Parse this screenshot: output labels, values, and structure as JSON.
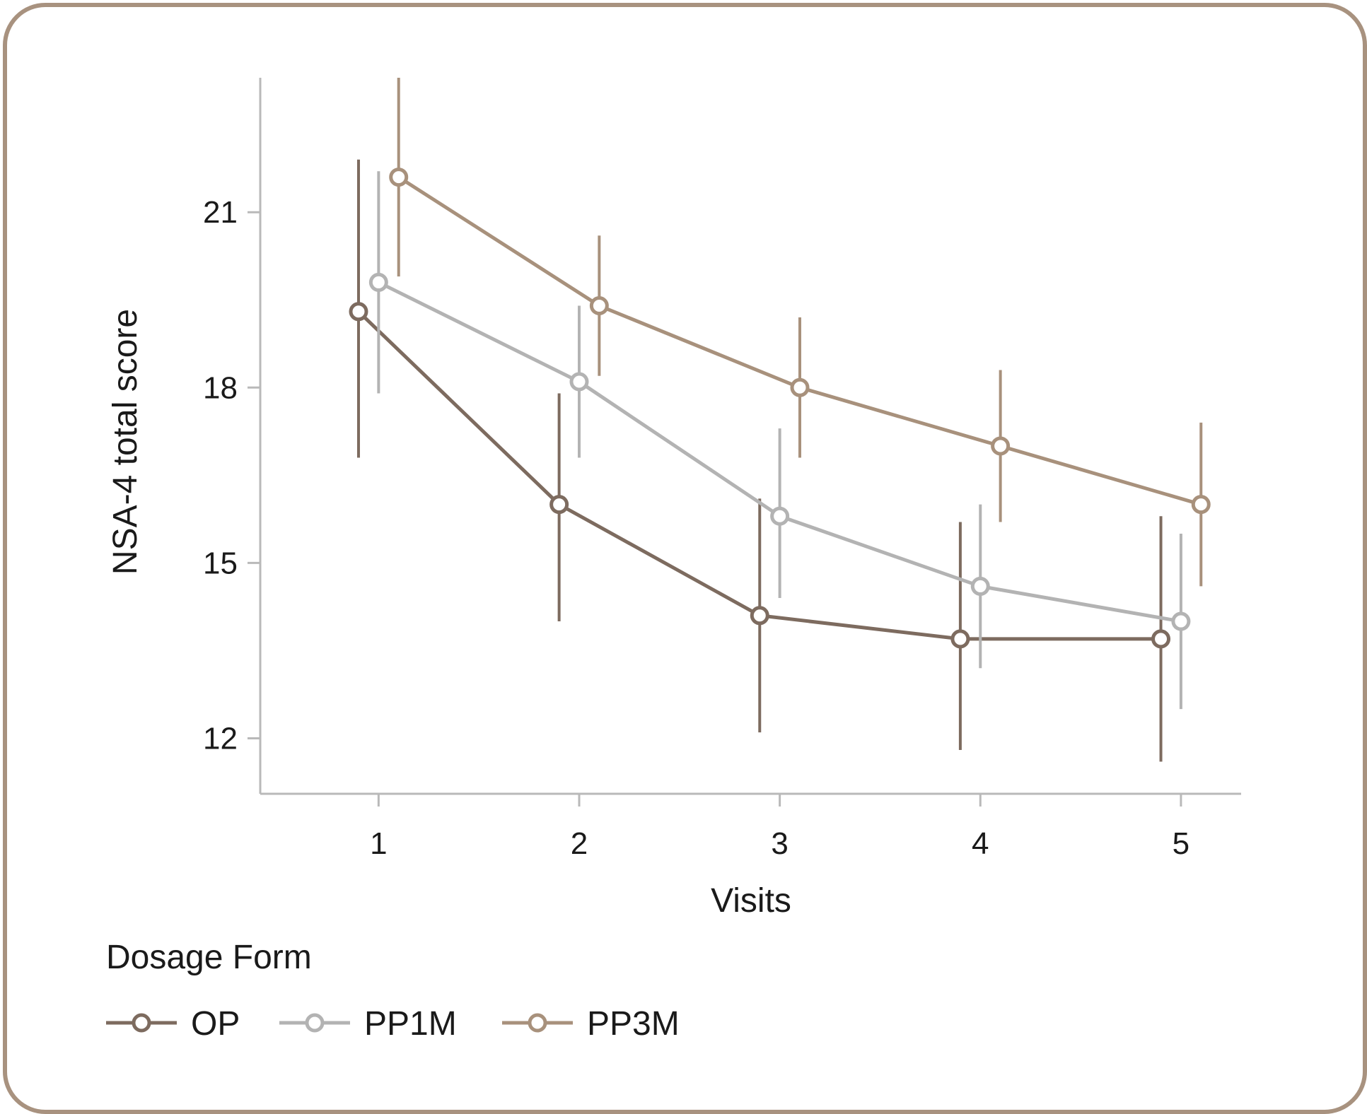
{
  "chart_data": {
    "type": "line",
    "title": "",
    "xlabel": "Visits",
    "ylabel": "NSA-4 total score",
    "x": [
      1,
      2,
      3,
      4,
      5
    ],
    "x_tick_labels": [
      "1",
      "2",
      "3",
      "4",
      "5"
    ],
    "y_ticks": [
      12,
      15,
      18,
      21
    ],
    "y_tick_labels": [
      "12",
      "15",
      "18",
      "21"
    ],
    "xlim": [
      0.41,
      5.3
    ],
    "ylim": [
      11.05,
      23.3
    ],
    "error_bars": "95% interval (vertical lines)",
    "series": [
      {
        "name": "OP",
        "color": "#7d6b5f",
        "offset": -0.1,
        "values": [
          19.3,
          16.0,
          14.1,
          13.7,
          13.7
        ],
        "lower": [
          16.8,
          14.0,
          12.1,
          11.8,
          11.6
        ],
        "upper": [
          21.9,
          17.9,
          16.1,
          15.7,
          15.8
        ]
      },
      {
        "name": "PP1M",
        "color": "#b3b3b3",
        "offset": 0.0,
        "values": [
          19.8,
          18.1,
          15.8,
          14.6,
          14.0
        ],
        "lower": [
          17.9,
          16.8,
          14.4,
          13.2,
          12.5
        ],
        "upper": [
          21.7,
          19.4,
          17.3,
          16.0,
          15.5
        ]
      },
      {
        "name": "PP3M",
        "color": "#a8917c",
        "offset": 0.1,
        "values": [
          21.6,
          19.4,
          18.0,
          17.0,
          16.0
        ],
        "lower": [
          19.9,
          18.2,
          16.8,
          15.7,
          14.6
        ],
        "upper": [
          23.3,
          20.6,
          19.2,
          18.3,
          17.4
        ]
      }
    ],
    "legend": {
      "title": "Dosage Form",
      "position": "bottom-left",
      "entries": [
        "OP",
        "PP1M",
        "PP3M"
      ]
    }
  }
}
